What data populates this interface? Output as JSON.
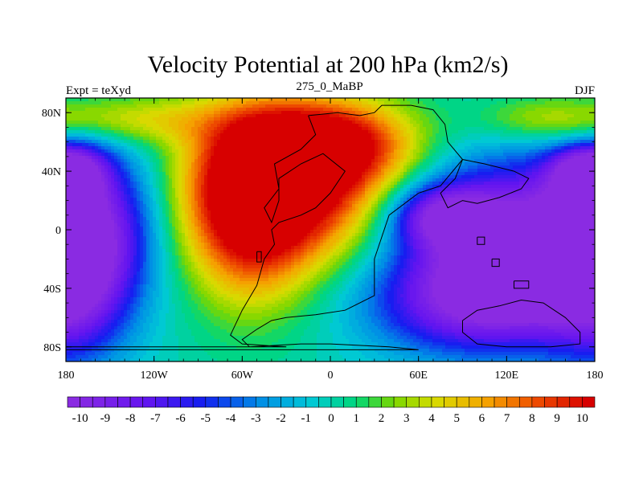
{
  "title": "Velocity Potential at 200 hPa (km2/s)",
  "left_label": "Expt = teXyd",
  "center_label": "275_0_MaBP",
  "right_label": "DJF",
  "map": {
    "projection": "cylindrical-equidistant",
    "lon_range": [
      -180,
      180
    ],
    "lat_range": [
      -90,
      90
    ],
    "x_ticks": [
      {
        "lon": -180,
        "label": "180"
      },
      {
        "lon": -120,
        "label": "120W"
      },
      {
        "lon": -60,
        "label": "60W"
      },
      {
        "lon": 0,
        "label": "0"
      },
      {
        "lon": 60,
        "label": "60E"
      },
      {
        "lon": 120,
        "label": "120E"
      },
      {
        "lon": 180,
        "label": "180"
      }
    ],
    "y_ticks": [
      {
        "lat": 80,
        "label": "80N"
      },
      {
        "lat": 40,
        "label": "40N"
      },
      {
        "lat": 0,
        "label": "0"
      },
      {
        "lat": -40,
        "label": "40S"
      },
      {
        "lat": -80,
        "label": "80S"
      }
    ]
  },
  "colorbar": {
    "min": -10,
    "max": 10,
    "step": 0.5,
    "labels": [
      "-10",
      "-9",
      "-8",
      "-7",
      "-6",
      "-5",
      "-4",
      "-3",
      "-2",
      "-1",
      "0",
      "1",
      "2",
      "3",
      "4",
      "5",
      "6",
      "7",
      "8",
      "9",
      "10"
    ]
  },
  "field_features": [
    {
      "lon": -20,
      "lat": 30,
      "value": 10.5,
      "sx": 48,
      "sy": 36
    },
    {
      "lon": -55,
      "lat": 15,
      "value": 9.5,
      "sx": 30,
      "sy": 45
    },
    {
      "lon": 0,
      "lat": 60,
      "value": 8,
      "sx": 40,
      "sy": 20
    },
    {
      "lon": 125,
      "lat": -5,
      "value": -10.5,
      "sx": 55,
      "sy": 38
    },
    {
      "lon": 75,
      "lat": 10,
      "value": -7,
      "sx": 25,
      "sy": 15
    },
    {
      "lon": 100,
      "lat": -50,
      "value": -8,
      "sx": 50,
      "sy": 25
    },
    {
      "lon": -175,
      "lat": -20,
      "value": -10,
      "sx": 28,
      "sy": 45
    },
    {
      "lon": 170,
      "lat": 40,
      "value": -6,
      "sx": 15,
      "sy": 12
    },
    {
      "lon": -170,
      "lat": 40,
      "value": -5,
      "sx": 15,
      "sy": 15
    },
    {
      "lon": -140,
      "lat": 10,
      "value": -2,
      "sx": 20,
      "sy": 35
    },
    {
      "lon": 150,
      "lat": 75,
      "value": 4,
      "sx": 35,
      "sy": 12
    },
    {
      "lon": -130,
      "lat": 75,
      "value": 4,
      "sx": 40,
      "sy": 12
    }
  ],
  "coastlines": [
    {
      "name": "western-landmass",
      "points": [
        [
          -15,
          78
        ],
        [
          5,
          80
        ],
        [
          20,
          78
        ],
        [
          30,
          80
        ],
        [
          35,
          85
        ],
        [
          55,
          85
        ],
        [
          70,
          82
        ],
        [
          78,
          72
        ],
        [
          80,
          60
        ],
        [
          90,
          48
        ],
        [
          75,
          30
        ],
        [
          60,
          25
        ],
        [
          40,
          10
        ],
        [
          30,
          -20
        ],
        [
          30,
          -45
        ],
        [
          10,
          -55
        ],
        [
          -10,
          -58
        ],
        [
          -30,
          -60
        ],
        [
          -40,
          -62
        ],
        [
          -50,
          -68
        ],
        [
          -60,
          -75
        ],
        [
          -55,
          -80
        ],
        [
          -20,
          -78
        ],
        [
          0,
          -78
        ],
        [
          40,
          -80
        ],
        [
          60,
          -82
        ],
        [
          60,
          -82
        ],
        [
          -180,
          -82
        ],
        [
          -180,
          -80
        ],
        [
          -30,
          -80
        ],
        [
          -60,
          -78
        ],
        [
          -68,
          -72
        ],
        [
          -60,
          -55
        ],
        [
          -50,
          -38
        ],
        [
          -45,
          -20
        ],
        [
          -38,
          -10
        ],
        [
          -40,
          0
        ],
        [
          -35,
          5
        ],
        [
          -20,
          10
        ],
        [
          -10,
          15
        ],
        [
          0,
          25
        ],
        [
          10,
          40
        ],
        [
          -5,
          52
        ],
        [
          -20,
          45
        ],
        [
          -35,
          35
        ],
        [
          -35,
          20
        ],
        [
          -40,
          5
        ],
        [
          -45,
          15
        ],
        [
          -35,
          28
        ],
        [
          -38,
          45
        ],
        [
          -20,
          55
        ],
        [
          -10,
          65
        ],
        [
          -15,
          78
        ]
      ]
    },
    {
      "name": "eastern-landmass",
      "points": [
        [
          90,
          48
        ],
        [
          105,
          45
        ],
        [
          125,
          40
        ],
        [
          135,
          35
        ],
        [
          130,
          28
        ],
        [
          115,
          22
        ],
        [
          100,
          18
        ],
        [
          90,
          20
        ],
        [
          80,
          15
        ],
        [
          75,
          25
        ],
        [
          85,
          35
        ],
        [
          90,
          48
        ]
      ]
    },
    {
      "name": "southern-landmass",
      "points": [
        [
          90,
          -62
        ],
        [
          100,
          -55
        ],
        [
          115,
          -52
        ],
        [
          130,
          -48
        ],
        [
          145,
          -50
        ],
        [
          160,
          -60
        ],
        [
          170,
          -70
        ],
        [
          170,
          -78
        ],
        [
          150,
          -80
        ],
        [
          120,
          -80
        ],
        [
          100,
          -78
        ],
        [
          90,
          -70
        ],
        [
          90,
          -62
        ]
      ]
    },
    {
      "name": "island-1",
      "points": [
        [
          100,
          -5
        ],
        [
          105,
          -5
        ],
        [
          105,
          -10
        ],
        [
          100,
          -10
        ],
        [
          100,
          -5
        ]
      ]
    },
    {
      "name": "island-2",
      "points": [
        [
          110,
          -20
        ],
        [
          115,
          -20
        ],
        [
          115,
          -25
        ],
        [
          110,
          -25
        ],
        [
          110,
          -20
        ]
      ]
    },
    {
      "name": "island-3",
      "points": [
        [
          125,
          -35
        ],
        [
          135,
          -35
        ],
        [
          135,
          -40
        ],
        [
          125,
          -40
        ],
        [
          125,
          -35
        ]
      ]
    },
    {
      "name": "island-4",
      "points": [
        [
          -50,
          -15
        ],
        [
          -47,
          -15
        ],
        [
          -47,
          -22
        ],
        [
          -50,
          -22
        ],
        [
          -50,
          -15
        ]
      ]
    }
  ],
  "colors": {
    "background": "#ffffff",
    "outline": "#000000"
  }
}
